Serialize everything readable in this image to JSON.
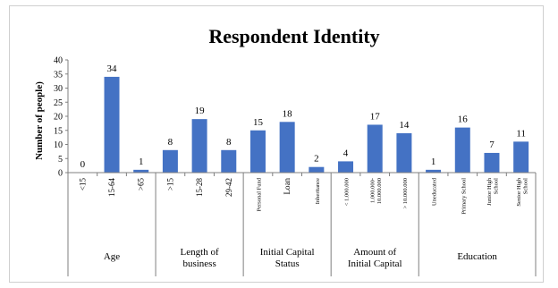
{
  "chart_data": {
    "type": "bar",
    "title": "Respondent Identity",
    "ylabel": "Number of people)",
    "ylim": [
      0,
      40
    ],
    "yticks": [
      0,
      5,
      10,
      15,
      20,
      25,
      30,
      35,
      40
    ],
    "bar_color": "#4472c4",
    "groups": [
      {
        "label": [
          "Age"
        ],
        "bars": [
          {
            "category": [
              "<15"
            ],
            "value": 0
          },
          {
            "category": [
              "15-64"
            ],
            "value": 34
          },
          {
            "category": [
              ">65"
            ],
            "value": 1
          }
        ]
      },
      {
        "label": [
          "Length of",
          "business"
        ],
        "bars": [
          {
            "category": [
              ">15"
            ],
            "value": 8
          },
          {
            "category": [
              "15-28"
            ],
            "value": 19
          },
          {
            "category": [
              "29-42"
            ],
            "value": 8
          }
        ]
      },
      {
        "label": [
          "Initial Capital",
          "Status"
        ],
        "bars": [
          {
            "category": [
              "Personal Fund"
            ],
            "value": 15
          },
          {
            "category": [
              "Loan"
            ],
            "value": 18
          },
          {
            "category": [
              "Inheritance"
            ],
            "value": 2
          }
        ]
      },
      {
        "label": [
          "Amount of",
          "Initial Capital"
        ],
        "bars": [
          {
            "category": [
              "< 1.000.000"
            ],
            "value": 4
          },
          {
            "category": [
              "1.000.000-",
              "10.000.000"
            ],
            "value": 17
          },
          {
            "category": [
              "> 10.000.000"
            ],
            "value": 14
          }
        ]
      },
      {
        "label": [
          "Education"
        ],
        "bars": [
          {
            "category": [
              "Uneducated"
            ],
            "value": 1
          },
          {
            "category": [
              "Primary School"
            ],
            "value": 16
          },
          {
            "category": [
              "Junior High",
              "School"
            ],
            "value": 7
          },
          {
            "category": [
              "Senior High",
              "School"
            ],
            "value": 11
          }
        ]
      }
    ]
  }
}
